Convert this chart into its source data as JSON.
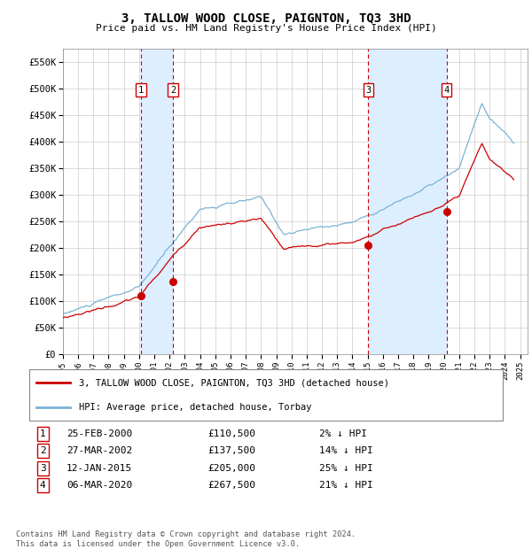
{
  "title": "3, TALLOW WOOD CLOSE, PAIGNTON, TQ3 3HD",
  "subtitle": "Price paid vs. HM Land Registry's House Price Index (HPI)",
  "yticks": [
    0,
    50000,
    100000,
    150000,
    200000,
    250000,
    300000,
    350000,
    400000,
    450000,
    500000,
    550000
  ],
  "ytick_labels": [
    "£0",
    "£50K",
    "£100K",
    "£150K",
    "£200K",
    "£250K",
    "£300K",
    "£350K",
    "£400K",
    "£450K",
    "£500K",
    "£550K"
  ],
  "ylim": [
    0,
    575000
  ],
  "xlim_start": 1995.0,
  "xlim_end": 2025.5,
  "xtick_years": [
    1995,
    1996,
    1997,
    1998,
    1999,
    2000,
    2001,
    2002,
    2003,
    2004,
    2005,
    2006,
    2007,
    2008,
    2009,
    2010,
    2011,
    2012,
    2013,
    2014,
    2015,
    2016,
    2017,
    2018,
    2019,
    2020,
    2021,
    2022,
    2023,
    2024,
    2025
  ],
  "hpi_line_color": "#7ab3d4",
  "price_color": "#cc0000",
  "sale_marker_color": "#cc0000",
  "shade_color": "#ddeeff",
  "legend_label_price": "3, TALLOW WOOD CLOSE, PAIGNTON, TQ3 3HD (detached house)",
  "legend_label_hpi": "HPI: Average price, detached house, Torbay",
  "footer": "Contains HM Land Registry data © Crown copyright and database right 2024.\nThis data is licensed under the Open Government Licence v3.0.",
  "transactions": [
    {
      "num": 1,
      "date": "25-FEB-2000",
      "year": 2000.12,
      "price": 110500,
      "hpi_pct": "2% ↓ HPI"
    },
    {
      "num": 2,
      "date": "27-MAR-2002",
      "year": 2002.23,
      "price": 137500,
      "hpi_pct": "14% ↓ HPI"
    },
    {
      "num": 3,
      "date": "12-JAN-2015",
      "year": 2015.04,
      "price": 205000,
      "hpi_pct": "25% ↓ HPI"
    },
    {
      "num": 4,
      "date": "06-MAR-2020",
      "year": 2020.18,
      "price": 267500,
      "hpi_pct": "21% ↓ HPI"
    }
  ]
}
